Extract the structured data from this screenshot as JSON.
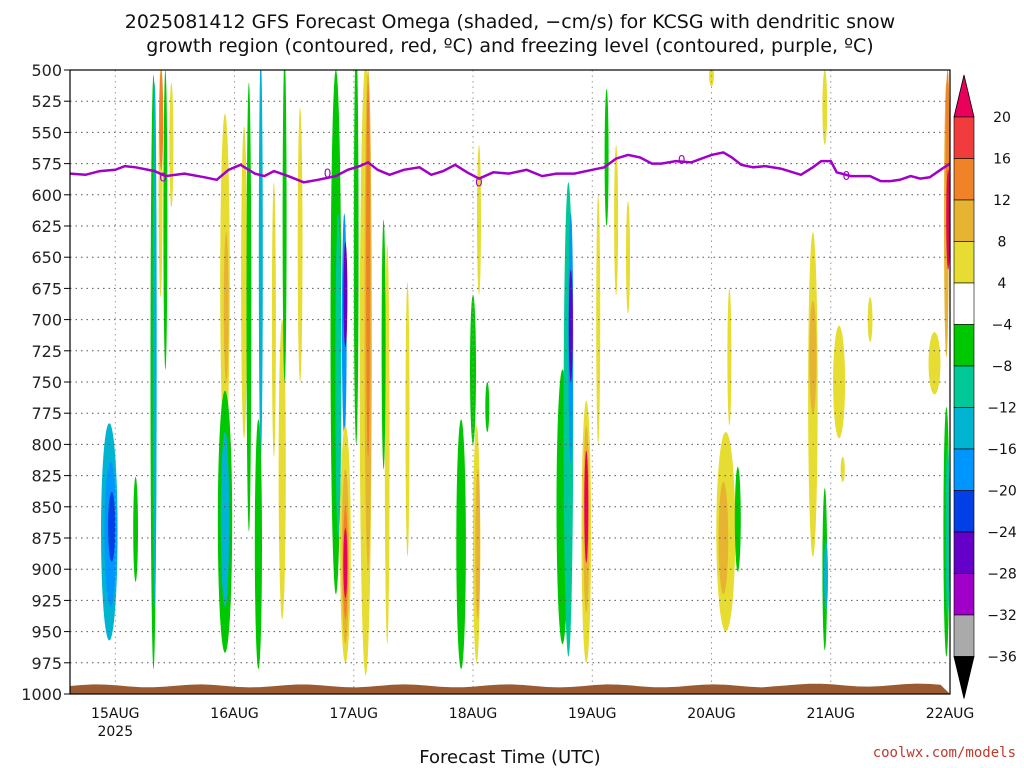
{
  "title_line1": "2025081412 GFS Forecast Omega (shaded, −cm/s) for KCSG with dendritic snow",
  "title_line2": "growth region (contoured, red, ºC) and freezing level (contoured, purple, ºC)",
  "credit": "coolwx.com/models",
  "chart_data": {
    "type": "heatmap",
    "xlabel": "Forecast Time (UTC)",
    "ylabel": "",
    "x_ticks": [
      {
        "label": "15AUG",
        "sublabel": "2025",
        "day": 15
      },
      {
        "label": "16AUG",
        "day": 16
      },
      {
        "label": "17AUG",
        "day": 17
      },
      {
        "label": "18AUG",
        "day": 18
      },
      {
        "label": "19AUG",
        "day": 19
      },
      {
        "label": "20AUG",
        "day": 20
      },
      {
        "label": "21AUG",
        "day": 21
      },
      {
        "label": "22AUG",
        "day": 22
      }
    ],
    "xlim": [
      14.62,
      22.0
    ],
    "y_ticks": [
      500,
      525,
      550,
      575,
      600,
      625,
      650,
      675,
      700,
      725,
      750,
      775,
      800,
      825,
      850,
      875,
      900,
      925,
      950,
      975,
      1000
    ],
    "ylim": [
      500,
      1000
    ],
    "colorbar": {
      "levels": [
        "20",
        "16",
        "12",
        "8",
        "4",
        "−4",
        "−8",
        "−12",
        "−16",
        "−20",
        "−24",
        "−28",
        "−32",
        "−36"
      ],
      "colors": [
        "#e8005a",
        "#f03c3c",
        "#f08228",
        "#e6b432",
        "#e6dc32",
        "#ffffff",
        "#00c800",
        "#00c896",
        "#00b4d2",
        "#0096ff",
        "#0040e6",
        "#6400c8",
        "#a000c8",
        "#aaaaaa",
        "#000000"
      ]
    },
    "freezing_level_label": "0",
    "freezing_level_color": "#a000c8",
    "surface_color": "#9a5a32",
    "freezing_level": [
      [
        14.62,
        583
      ],
      [
        14.75,
        584
      ],
      [
        14.87,
        581
      ],
      [
        15.0,
        580
      ],
      [
        15.08,
        577
      ],
      [
        15.17,
        578
      ],
      [
        15.33,
        581
      ],
      [
        15.42,
        585
      ],
      [
        15.58,
        583
      ],
      [
        15.75,
        586
      ],
      [
        15.85,
        588
      ],
      [
        15.95,
        580
      ],
      [
        16.05,
        576
      ],
      [
        16.17,
        583
      ],
      [
        16.25,
        585
      ],
      [
        16.33,
        581
      ],
      [
        16.45,
        585
      ],
      [
        16.58,
        590
      ],
      [
        16.7,
        588
      ],
      [
        16.85,
        585
      ],
      [
        16.95,
        580
      ],
      [
        17.05,
        577
      ],
      [
        17.12,
        574
      ],
      [
        17.2,
        580
      ],
      [
        17.3,
        584
      ],
      [
        17.42,
        580
      ],
      [
        17.55,
        578
      ],
      [
        17.65,
        584
      ],
      [
        17.75,
        581
      ],
      [
        17.85,
        576
      ],
      [
        17.95,
        582
      ],
      [
        18.05,
        587
      ],
      [
        18.17,
        582
      ],
      [
        18.3,
        583
      ],
      [
        18.45,
        580
      ],
      [
        18.58,
        585
      ],
      [
        18.7,
        583
      ],
      [
        18.85,
        583
      ],
      [
        19.0,
        580
      ],
      [
        19.1,
        578
      ],
      [
        19.2,
        571
      ],
      [
        19.3,
        568
      ],
      [
        19.4,
        570
      ],
      [
        19.5,
        575
      ],
      [
        19.58,
        575
      ],
      [
        19.7,
        573
      ],
      [
        19.83,
        574
      ],
      [
        20.0,
        568
      ],
      [
        20.1,
        566
      ],
      [
        20.17,
        570
      ],
      [
        20.25,
        576
      ],
      [
        20.35,
        578
      ],
      [
        20.45,
        577
      ],
      [
        20.58,
        579
      ],
      [
        20.75,
        584
      ],
      [
        20.85,
        578
      ],
      [
        20.92,
        573
      ],
      [
        21.0,
        573
      ],
      [
        21.05,
        582
      ],
      [
        21.17,
        585
      ],
      [
        21.33,
        585
      ],
      [
        21.42,
        589
      ],
      [
        21.5,
        589
      ],
      [
        21.58,
        588
      ],
      [
        21.67,
        585
      ],
      [
        21.75,
        587
      ],
      [
        21.83,
        586
      ],
      [
        21.92,
        580
      ],
      [
        22.0,
        575
      ]
    ],
    "regions": [
      {
        "c": 8,
        "d": 14.95,
        "p": 870,
        "rx": 0.07,
        "ry": 87
      },
      {
        "c": 9,
        "d": 14.96,
        "p": 872,
        "rx": 0.05,
        "ry": 58
      },
      {
        "c": 10,
        "d": 14.97,
        "p": 866,
        "rx": 0.03,
        "ry": 28
      },
      {
        "c": 6,
        "d": 15.17,
        "p": 868,
        "rx": 0.02,
        "ry": 42
      },
      {
        "c": 6,
        "d": 15.32,
        "p": 742,
        "rx": 0.025,
        "ry": 238
      },
      {
        "c": 8,
        "d": 15.33,
        "p": 720,
        "rx": 0.013,
        "ry": 210
      },
      {
        "c": 4,
        "d": 15.38,
        "p": 590,
        "rx": 0.01,
        "ry": 92
      },
      {
        "c": 2,
        "d": 15.385,
        "p": 540,
        "rx": 0.006,
        "ry": 40
      },
      {
        "c": 6,
        "d": 15.42,
        "p": 620,
        "rx": 0.01,
        "ry": 120
      },
      {
        "c": 4,
        "d": 15.47,
        "p": 560,
        "rx": 0.008,
        "ry": 50
      },
      {
        "c": 4,
        "d": 15.92,
        "p": 670,
        "rx": 0.04,
        "ry": 135
      },
      {
        "c": 3,
        "d": 15.93,
        "p": 690,
        "rx": 0.02,
        "ry": 60
      },
      {
        "c": 6,
        "d": 15.92,
        "p": 862,
        "rx": 0.06,
        "ry": 105
      },
      {
        "c": 8,
        "d": 15.92,
        "p": 860,
        "rx": 0.035,
        "ry": 70
      },
      {
        "c": 4,
        "d": 16.08,
        "p": 670,
        "rx": 0.025,
        "ry": 125
      },
      {
        "c": 6,
        "d": 16.12,
        "p": 690,
        "rx": 0.02,
        "ry": 180
      },
      {
        "c": 8,
        "d": 16.22,
        "p": 650,
        "rx": 0.014,
        "ry": 160
      },
      {
        "c": 6,
        "d": 16.2,
        "p": 880,
        "rx": 0.03,
        "ry": 100
      },
      {
        "c": 4,
        "d": 16.33,
        "p": 700,
        "rx": 0.015,
        "ry": 110
      },
      {
        "c": 4,
        "d": 16.4,
        "p": 820,
        "rx": 0.03,
        "ry": 120
      },
      {
        "c": 6,
        "d": 16.42,
        "p": 620,
        "rx": 0.012,
        "ry": 130
      },
      {
        "c": 4,
        "d": 16.55,
        "p": 640,
        "rx": 0.02,
        "ry": 110
      },
      {
        "c": 6,
        "d": 16.85,
        "p": 710,
        "rx": 0.045,
        "ry": 210
      },
      {
        "c": 7,
        "d": 16.87,
        "p": 745,
        "rx": 0.025,
        "ry": 130
      },
      {
        "c": 9,
        "d": 16.92,
        "p": 705,
        "rx": 0.02,
        "ry": 90
      },
      {
        "c": 11,
        "d": 16.93,
        "p": 680,
        "rx": 0.012,
        "ry": 42
      },
      {
        "c": 4,
        "d": 16.93,
        "p": 880,
        "rx": 0.045,
        "ry": 95
      },
      {
        "c": 3,
        "d": 16.93,
        "p": 890,
        "rx": 0.03,
        "ry": 70
      },
      {
        "c": 2,
        "d": 16.93,
        "p": 895,
        "rx": 0.02,
        "ry": 45
      },
      {
        "c": 0,
        "d": 16.93,
        "p": 895,
        "rx": 0.01,
        "ry": 28
      },
      {
        "c": 6,
        "d": 17.02,
        "p": 640,
        "rx": 0.02,
        "ry": 160
      },
      {
        "c": 4,
        "d": 17.1,
        "p": 740,
        "rx": 0.05,
        "ry": 245
      },
      {
        "c": 3,
        "d": 17.12,
        "p": 700,
        "rx": 0.03,
        "ry": 200
      },
      {
        "c": 2,
        "d": 17.12,
        "p": 660,
        "rx": 0.015,
        "ry": 150
      },
      {
        "c": 4,
        "d": 17.28,
        "p": 800,
        "rx": 0.02,
        "ry": 160
      },
      {
        "c": 6,
        "d": 17.25,
        "p": 720,
        "rx": 0.01,
        "ry": 100
      },
      {
        "c": 4,
        "d": 17.45,
        "p": 780,
        "rx": 0.015,
        "ry": 110
      },
      {
        "c": 6,
        "d": 17.9,
        "p": 880,
        "rx": 0.04,
        "ry": 100
      },
      {
        "c": 6,
        "d": 18.0,
        "p": 740,
        "rx": 0.025,
        "ry": 60
      },
      {
        "c": 4,
        "d": 18.03,
        "p": 880,
        "rx": 0.03,
        "ry": 95
      },
      {
        "c": 3,
        "d": 18.04,
        "p": 880,
        "rx": 0.02,
        "ry": 60
      },
      {
        "c": 4,
        "d": 18.05,
        "p": 620,
        "rx": 0.015,
        "ry": 60
      },
      {
        "c": 6,
        "d": 18.12,
        "p": 770,
        "rx": 0.01,
        "ry": 20
      },
      {
        "c": 6,
        "d": 18.75,
        "p": 850,
        "rx": 0.05,
        "ry": 110
      },
      {
        "c": 7,
        "d": 18.8,
        "p": 780,
        "rx": 0.04,
        "ry": 190
      },
      {
        "c": 9,
        "d": 18.82,
        "p": 715,
        "rx": 0.02,
        "ry": 100
      },
      {
        "c": 11,
        "d": 18.82,
        "p": 705,
        "rx": 0.012,
        "ry": 45
      },
      {
        "c": 4,
        "d": 18.95,
        "p": 870,
        "rx": 0.04,
        "ry": 105
      },
      {
        "c": 3,
        "d": 18.95,
        "p": 860,
        "rx": 0.025,
        "ry": 75
      },
      {
        "c": 0,
        "d": 18.95,
        "p": 850,
        "rx": 0.012,
        "ry": 45
      },
      {
        "c": 4,
        "d": 19.05,
        "p": 700,
        "rx": 0.015,
        "ry": 100
      },
      {
        "c": 6,
        "d": 19.12,
        "p": 570,
        "rx": 0.01,
        "ry": 55
      },
      {
        "c": 4,
        "d": 19.2,
        "p": 620,
        "rx": 0.01,
        "ry": 60
      },
      {
        "c": 4,
        "d": 19.3,
        "p": 650,
        "rx": 0.012,
        "ry": 45
      },
      {
        "c": 4,
        "d": 20.12,
        "p": 870,
        "rx": 0.08,
        "ry": 80
      },
      {
        "c": 3,
        "d": 20.1,
        "p": 875,
        "rx": 0.04,
        "ry": 45
      },
      {
        "c": 6,
        "d": 20.22,
        "p": 860,
        "rx": 0.025,
        "ry": 42
      },
      {
        "c": 4,
        "d": 20.15,
        "p": 730,
        "rx": 0.012,
        "ry": 55
      },
      {
        "c": 4,
        "d": 20.0,
        "p": 505,
        "rx": 0.02,
        "ry": 8
      },
      {
        "c": 4,
        "d": 20.85,
        "p": 760,
        "rx": 0.04,
        "ry": 130
      },
      {
        "c": 3,
        "d": 20.85,
        "p": 730,
        "rx": 0.03,
        "ry": 45
      },
      {
        "c": 6,
        "d": 20.95,
        "p": 900,
        "rx": 0.02,
        "ry": 65
      },
      {
        "c": 8,
        "d": 20.96,
        "p": 905,
        "rx": 0.012,
        "ry": 28
      },
      {
        "c": 4,
        "d": 21.07,
        "p": 750,
        "rx": 0.05,
        "ry": 45
      },
      {
        "c": 4,
        "d": 20.95,
        "p": 530,
        "rx": 0.02,
        "ry": 30
      },
      {
        "c": 4,
        "d": 21.33,
        "p": 700,
        "rx": 0.02,
        "ry": 18
      },
      {
        "c": 4,
        "d": 21.1,
        "p": 820,
        "rx": 0.018,
        "ry": 10
      },
      {
        "c": 4,
        "d": 21.87,
        "p": 735,
        "rx": 0.05,
        "ry": 25
      },
      {
        "c": 6,
        "d": 21.97,
        "p": 870,
        "rx": 0.025,
        "ry": 100
      },
      {
        "c": 7,
        "d": 21.98,
        "p": 870,
        "rx": 0.012,
        "ry": 70
      },
      {
        "c": 3,
        "d": 21.97,
        "p": 620,
        "rx": 0.02,
        "ry": 110
      },
      {
        "c": 2,
        "d": 21.98,
        "p": 560,
        "rx": 0.012,
        "ry": 60
      },
      {
        "c": 0,
        "d": 21.985,
        "p": 620,
        "rx": 0.01,
        "ry": 40
      }
    ]
  }
}
